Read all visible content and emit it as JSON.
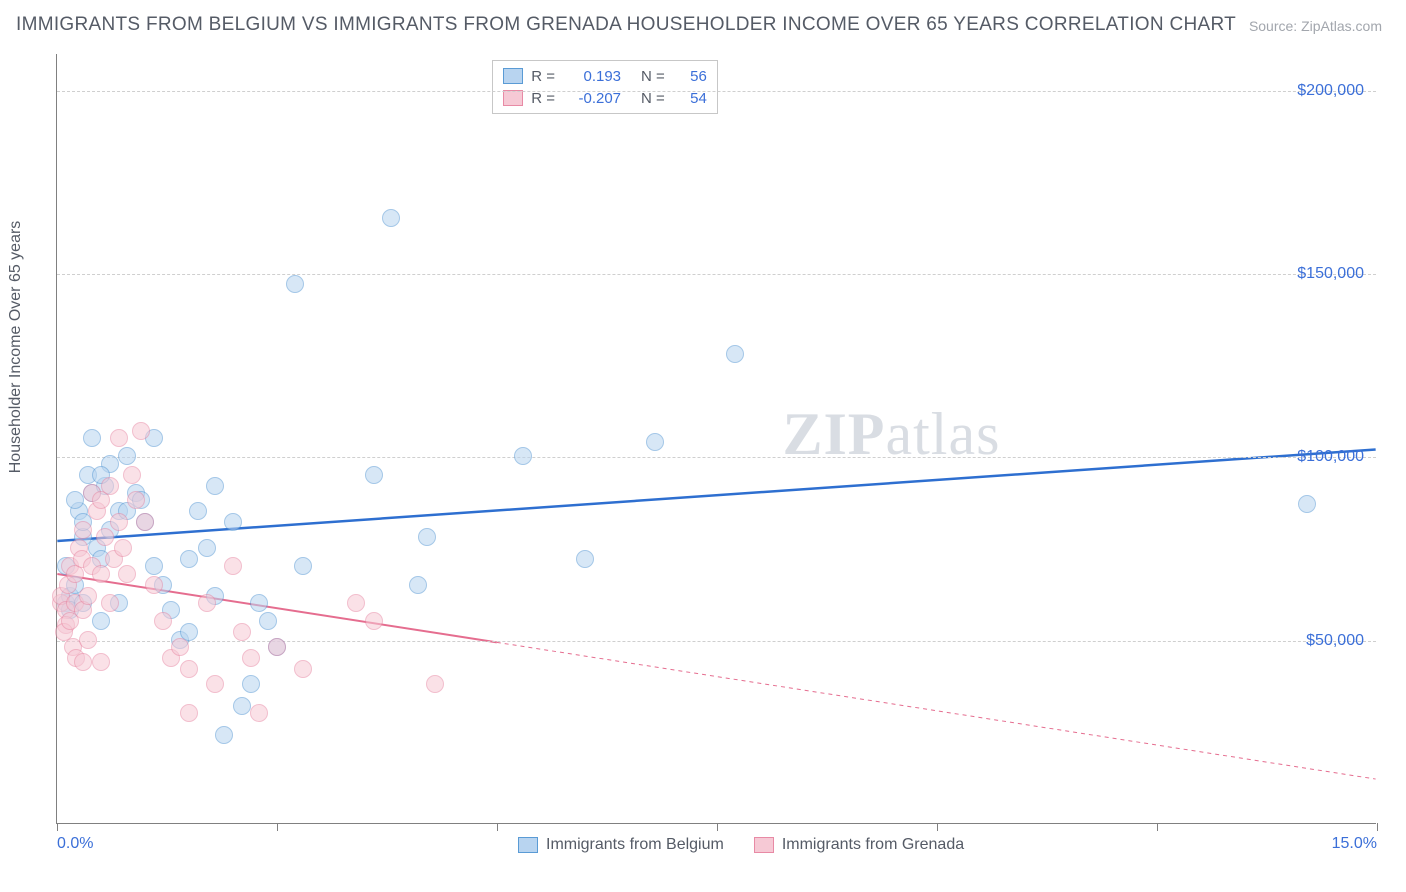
{
  "title": "IMMIGRANTS FROM BELGIUM VS IMMIGRANTS FROM GRENADA HOUSEHOLDER INCOME OVER 65 YEARS CORRELATION CHART",
  "source": "Source: ZipAtlas.com",
  "watermark_a": "ZIP",
  "watermark_b": "atlas",
  "y_axis_label": "Householder Income Over 65 years",
  "chart": {
    "type": "scatter",
    "background_color": "#ffffff",
    "grid_color": "#cfcfcf",
    "axis_color": "#808080",
    "xlim": [
      0,
      15
    ],
    "ylim": [
      0,
      210000
    ],
    "marker_radius": 9,
    "marker_opacity": 0.55,
    "marker_stroke_width": 1.2,
    "x_ticks": [
      0,
      2.5,
      5,
      7.5,
      10,
      12.5,
      15
    ],
    "x_tick_labels_shown": {
      "0": "0.0%",
      "15": "15.0%"
    },
    "y_ticks": [
      50000,
      100000,
      150000,
      200000
    ],
    "y_tick_labels": [
      "$50,000",
      "$100,000",
      "$150,000",
      "$200,000"
    ],
    "series": [
      {
        "name": "Immigrants from Belgium",
        "fill": "#b8d4f0",
        "stroke": "#5a9bd5",
        "R": "0.193",
        "N": "56",
        "trend_color": "#2e6fd0",
        "trend_width": 2.5,
        "trend_y_at_x0": 77000,
        "trend_y_at_x15": 102000,
        "trend_solid_xmax": 15,
        "points": [
          [
            0.1,
            60000
          ],
          [
            0.15,
            62000
          ],
          [
            0.1,
            70000
          ],
          [
            0.2,
            65000
          ],
          [
            0.15,
            58000
          ],
          [
            0.25,
            85000
          ],
          [
            0.3,
            78000
          ],
          [
            0.2,
            88000
          ],
          [
            0.35,
            95000
          ],
          [
            0.4,
            90000
          ],
          [
            0.3,
            82000
          ],
          [
            0.45,
            75000
          ],
          [
            0.5,
            72000
          ],
          [
            0.3,
            60000
          ],
          [
            0.5,
            55000
          ],
          [
            0.55,
            92000
          ],
          [
            0.6,
            98000
          ],
          [
            0.6,
            80000
          ],
          [
            0.7,
            85000
          ],
          [
            0.5,
            95000
          ],
          [
            0.8,
            100000
          ],
          [
            0.8,
            85000
          ],
          [
            0.9,
            90000
          ],
          [
            0.95,
            88000
          ],
          [
            1.0,
            82000
          ],
          [
            1.1,
            70000
          ],
          [
            1.1,
            105000
          ],
          [
            1.2,
            65000
          ],
          [
            1.3,
            58000
          ],
          [
            1.4,
            50000
          ],
          [
            1.5,
            52000
          ],
          [
            1.5,
            72000
          ],
          [
            1.6,
            85000
          ],
          [
            1.7,
            75000
          ],
          [
            1.8,
            62000
          ],
          [
            1.8,
            92000
          ],
          [
            1.9,
            24000
          ],
          [
            2.0,
            82000
          ],
          [
            2.1,
            32000
          ],
          [
            2.2,
            38000
          ],
          [
            2.3,
            60000
          ],
          [
            2.4,
            55000
          ],
          [
            2.5,
            48000
          ],
          [
            2.7,
            147000
          ],
          [
            2.8,
            70000
          ],
          [
            3.6,
            95000
          ],
          [
            3.8,
            165000
          ],
          [
            4.1,
            65000
          ],
          [
            4.2,
            78000
          ],
          [
            5.3,
            100000
          ],
          [
            6.0,
            72000
          ],
          [
            6.8,
            104000
          ],
          [
            7.7,
            128000
          ],
          [
            14.2,
            87000
          ],
          [
            0.4,
            105000
          ],
          [
            0.7,
            60000
          ]
        ]
      },
      {
        "name": "Immigrants from Grenada",
        "fill": "#f6c9d5",
        "stroke": "#e88aa5",
        "R": "-0.207",
        "N": "54",
        "trend_color": "#e56d8f",
        "trend_width": 2,
        "trend_y_at_x0": 68000,
        "trend_y_at_x15": 12000,
        "trend_solid_xmax": 5.0,
        "points": [
          [
            0.05,
            60000
          ],
          [
            0.05,
            62000
          ],
          [
            0.1,
            58000
          ],
          [
            0.1,
            54000
          ],
          [
            0.08,
            52000
          ],
          [
            0.12,
            65000
          ],
          [
            0.15,
            70000
          ],
          [
            0.15,
            55000
          ],
          [
            0.18,
            48000
          ],
          [
            0.2,
            68000
          ],
          [
            0.2,
            60000
          ],
          [
            0.22,
            45000
          ],
          [
            0.25,
            75000
          ],
          [
            0.28,
            72000
          ],
          [
            0.3,
            80000
          ],
          [
            0.3,
            58000
          ],
          [
            0.35,
            62000
          ],
          [
            0.35,
            50000
          ],
          [
            0.4,
            90000
          ],
          [
            0.4,
            70000
          ],
          [
            0.45,
            85000
          ],
          [
            0.5,
            88000
          ],
          [
            0.5,
            68000
          ],
          [
            0.55,
            78000
          ],
          [
            0.6,
            92000
          ],
          [
            0.6,
            60000
          ],
          [
            0.65,
            72000
          ],
          [
            0.7,
            105000
          ],
          [
            0.7,
            82000
          ],
          [
            0.75,
            75000
          ],
          [
            0.8,
            68000
          ],
          [
            0.85,
            95000
          ],
          [
            0.9,
            88000
          ],
          [
            0.95,
            107000
          ],
          [
            1.0,
            82000
          ],
          [
            1.1,
            65000
          ],
          [
            1.2,
            55000
          ],
          [
            1.3,
            45000
          ],
          [
            1.4,
            48000
          ],
          [
            1.5,
            30000
          ],
          [
            1.5,
            42000
          ],
          [
            1.7,
            60000
          ],
          [
            1.8,
            38000
          ],
          [
            2.0,
            70000
          ],
          [
            2.1,
            52000
          ],
          [
            2.2,
            45000
          ],
          [
            2.3,
            30000
          ],
          [
            2.5,
            48000
          ],
          [
            2.8,
            42000
          ],
          [
            3.4,
            60000
          ],
          [
            3.6,
            55000
          ],
          [
            4.3,
            38000
          ],
          [
            0.5,
            44000
          ],
          [
            0.3,
            44000
          ]
        ]
      }
    ],
    "legend_labels": {
      "R": "R =",
      "N": "N ="
    }
  }
}
